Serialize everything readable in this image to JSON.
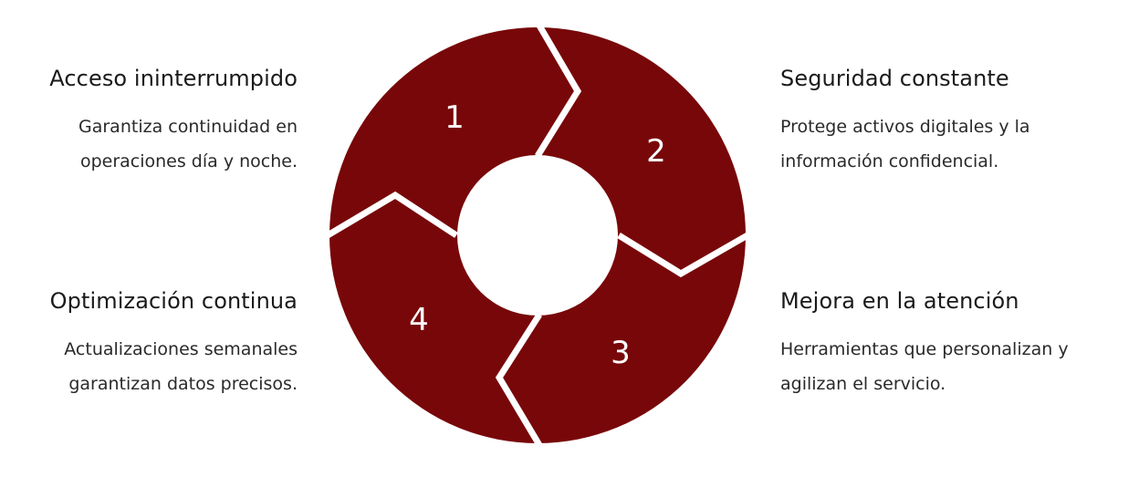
{
  "colors": {
    "segment": "#780709",
    "gap": "#ffffff",
    "text": "#1a1a1a"
  },
  "steps": [
    {
      "number": "1",
      "title": "Acceso ininterrumpido",
      "description": [
        "Garantiza continuidad en",
        "operaciones día y noche."
      ]
    },
    {
      "number": "2",
      "title": "Seguridad constante",
      "description": [
        "Protege activos digitales y la",
        "información confidencial."
      ]
    },
    {
      "number": "3",
      "title": "Mejora en la atención",
      "description": [
        "Herramientas que personalizan y",
        "agilizan el servicio."
      ]
    },
    {
      "number": "4",
      "title": "Optimización continua",
      "description": [
        "Actualizaciones semanales",
        "garantizan datos precisos."
      ]
    }
  ]
}
